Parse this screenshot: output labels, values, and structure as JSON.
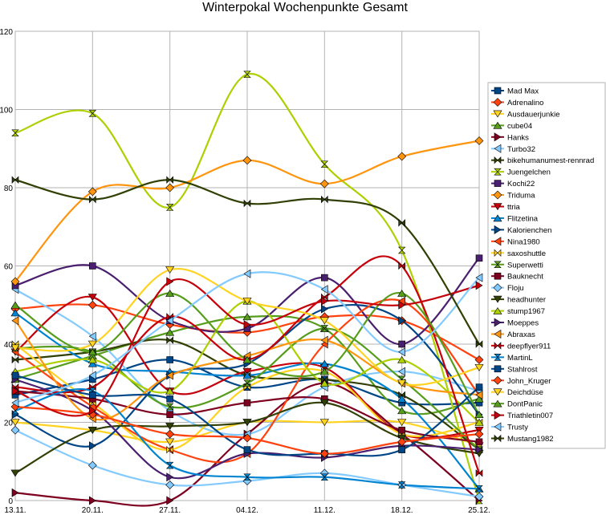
{
  "chart_data": {
    "type": "line",
    "title": "Winterpokal Wochenpunkte Gesamt",
    "xlabel": "",
    "ylabel": "",
    "ylim": [
      0,
      120
    ],
    "yticks": [
      0,
      20,
      40,
      60,
      80,
      100,
      120
    ],
    "grid": true,
    "legend_position": "right",
    "categories": [
      "13.11.",
      "20.11.",
      "27.11.",
      "04.12.",
      "11.12.",
      "18.12.",
      "25.12."
    ],
    "series": [
      {
        "name": "Mad Max",
        "color": "#004586",
        "values": [
          27,
          31,
          36,
          29,
          31,
          25,
          25
        ]
      },
      {
        "name": "Adrenalino",
        "color": "#ff420e",
        "values": [
          49,
          50,
          45,
          43,
          47,
          46,
          36
        ]
      },
      {
        "name": "Ausdauerjunkie",
        "color": "#ffd320",
        "values": [
          20,
          18,
          15,
          20,
          20,
          20,
          14
        ]
      },
      {
        "name": "cube04",
        "color": "#579d1c",
        "values": [
          31,
          37,
          43,
          47,
          44,
          23,
          26
        ]
      },
      {
        "name": "Hanks",
        "color": "#7e0021",
        "values": [
          2,
          0,
          0,
          17,
          30,
          17,
          0
        ]
      },
      {
        "name": "Turbo32",
        "color": "#83caff",
        "values": [
          54,
          42,
          23,
          17,
          29,
          33,
          28
        ]
      },
      {
        "name": "bikehumanumest-rennrad",
        "color": "#314004",
        "values": [
          36,
          38,
          41,
          32,
          31,
          27,
          13
        ]
      },
      {
        "name": "Juengelchen",
        "color": "#aecf00",
        "values": [
          94,
          99,
          75,
          109,
          86,
          64,
          0
        ]
      },
      {
        "name": "Kochi22",
        "color": "#4b1f6f",
        "values": [
          55,
          60,
          46,
          44,
          57,
          40,
          62
        ]
      },
      {
        "name": "Triduma",
        "color": "#ff950e",
        "values": [
          56,
          79,
          80,
          87,
          81,
          88,
          92
        ]
      },
      {
        "name": "ttria",
        "color": "#c5000b",
        "values": [
          38,
          52,
          28,
          33,
          34,
          17,
          18
        ]
      },
      {
        "name": "Flitzetina",
        "color": "#0084d1",
        "values": [
          48,
          35,
          33,
          32,
          35,
          26,
          3
        ]
      },
      {
        "name": "Kalorienchen",
        "color": "#004586",
        "values": [
          22,
          14,
          32,
          35,
          49,
          46,
          22
        ]
      },
      {
        "name": "Nina1980",
        "color": "#ff420e",
        "values": [
          38,
          24,
          13,
          12,
          40,
          51,
          27
        ]
      },
      {
        "name": "saxoshuttle",
        "color": "#ffd320",
        "values": [
          40,
          25,
          13,
          29,
          33,
          17,
          20
        ]
      },
      {
        "name": "Superwetti",
        "color": "#579d1c",
        "values": [
          39,
          38,
          24,
          30,
          44,
          31,
          13
        ]
      },
      {
        "name": "Bauknecht",
        "color": "#7e0021",
        "values": [
          28,
          26,
          22,
          25,
          26,
          18,
          15
        ]
      },
      {
        "name": "Floju",
        "color": "#83caff",
        "values": [
          18,
          9,
          4,
          5,
          7,
          4,
          1
        ]
      },
      {
        "name": "headhunter",
        "color": "#314004",
        "values": [
          7,
          18,
          19,
          20,
          25,
          16,
          12
        ]
      },
      {
        "name": "stump1967",
        "color": "#aecf00",
        "values": [
          33,
          36,
          28,
          51,
          30,
          36,
          20
        ]
      },
      {
        "name": "Moeppes",
        "color": "#4b1f6f",
        "values": [
          31,
          23,
          6,
          12,
          11,
          14,
          13
        ]
      },
      {
        "name": "Abraxas",
        "color": "#ff950e",
        "values": [
          46,
          21,
          32,
          37,
          41,
          30,
          27
        ]
      },
      {
        "name": "deepflyer911",
        "color": "#c5000b",
        "values": [
          29,
          29,
          47,
          36,
          52,
          60,
          7
        ]
      },
      {
        "name": "MartinL",
        "color": "#0084d1",
        "values": [
          23,
          28,
          9,
          6,
          6,
          4,
          3
        ]
      },
      {
        "name": "Stahlrost",
        "color": "#004586",
        "values": [
          32,
          27,
          26,
          13,
          12,
          13,
          29
        ]
      },
      {
        "name": "John_Kruger",
        "color": "#ff420e",
        "values": [
          24,
          22,
          17,
          16,
          12,
          15,
          17
        ]
      },
      {
        "name": "Deichdüse",
        "color": "#ffd320",
        "values": [
          39,
          40,
          59,
          51,
          46,
          30,
          34
        ]
      },
      {
        "name": "DontPanic",
        "color": "#579d1c",
        "values": [
          50,
          38,
          53,
          36,
          33,
          53,
          22
        ]
      },
      {
        "name": "Triathletin007",
        "color": "#c5000b",
        "values": [
          28,
          23,
          56,
          45,
          51,
          50,
          55
        ]
      },
      {
        "name": "Trusty",
        "color": "#83caff",
        "values": [
          25,
          32,
          46,
          58,
          54,
          38,
          57
        ]
      },
      {
        "name": "Mustang1982",
        "color": "#314004",
        "values": [
          82,
          77,
          82,
          76,
          77,
          71,
          40
        ]
      }
    ]
  }
}
